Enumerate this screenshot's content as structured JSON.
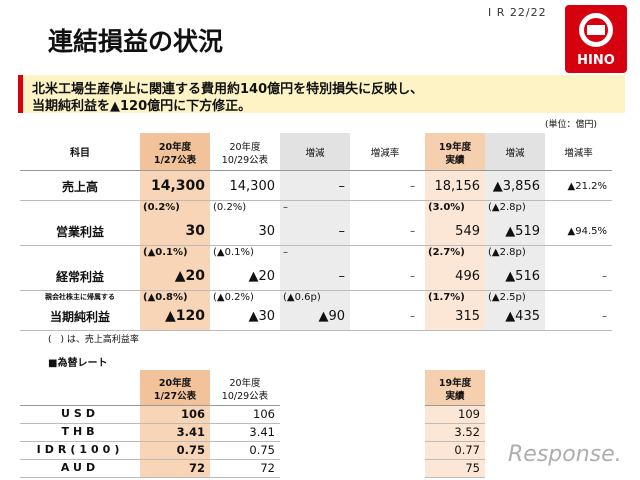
{
  "header": {
    "page": "I R 22/22",
    "title": "連結損益の状況",
    "logo": "HINO"
  },
  "summary": [
    "北米工場生産停止に関連する費用約140億円を特別損失に反映し、",
    "当期純利益を▲120億円に下方修正。"
  ],
  "unit": "(単位：億円)",
  "table": {
    "label_header": "科目",
    "headers": [
      [
        "20年度",
        "1/27公表"
      ],
      [
        "20年度",
        "10/29公表"
      ],
      [
        "増減"
      ],
      [
        "増減率"
      ],
      [
        "19年度",
        "実績"
      ],
      [
        "増減"
      ],
      [
        "増減率"
      ]
    ],
    "rows": [
      {
        "label": "売上高",
        "ratios": null,
        "values": [
          "14,300",
          "14,300",
          "–",
          "–",
          "18,156",
          "▲3,856",
          "▲21.2%"
        ]
      },
      {
        "label": "営業利益",
        "ratios": [
          "(0.2%)",
          "(0.2%)",
          "–",
          null,
          "(3.0%)",
          "(▲2.8p)",
          null
        ],
        "values": [
          "30",
          "30",
          "–",
          "–",
          "549",
          "▲519",
          "▲94.5%"
        ]
      },
      {
        "label": "経常利益",
        "ratios": [
          "(▲0.1%)",
          "(▲0.1%)",
          "–",
          null,
          "(2.7%)",
          "(▲2.8p)",
          null
        ],
        "values": [
          "▲20",
          "▲20",
          "–",
          "–",
          "496",
          "▲516",
          "–"
        ]
      },
      {
        "label": "当期純利益",
        "sublabel": "親会社株主に帰属する",
        "ratios": [
          "(▲0.8%)",
          "(▲0.2%)",
          "(▲0.6p)",
          null,
          "(1.7%)",
          "(▲2.5p)",
          null
        ],
        "values": [
          "▲120",
          "▲30",
          "▲90",
          "–",
          "315",
          "▲435",
          "–"
        ]
      }
    ],
    "note": "(　) は、売上高利益率"
  },
  "fx": {
    "title": "■為替レート",
    "headers": [
      [
        "20年度",
        "1/27公表"
      ],
      [
        "20年度",
        "10/29公表"
      ],
      [
        "19年度",
        "実績"
      ]
    ],
    "rows": [
      {
        "label": "USD",
        "values": [
          "106",
          "106",
          "109"
        ]
      },
      {
        "label": "THB",
        "values": [
          "3.41",
          "3.41",
          "3.52"
        ]
      },
      {
        "label": "IDR(100)",
        "values": [
          "0.75",
          "0.75",
          "0.77"
        ]
      },
      {
        "label": "AUD",
        "values": [
          "72",
          "72",
          "75"
        ]
      }
    ]
  },
  "watermark": "Response."
}
